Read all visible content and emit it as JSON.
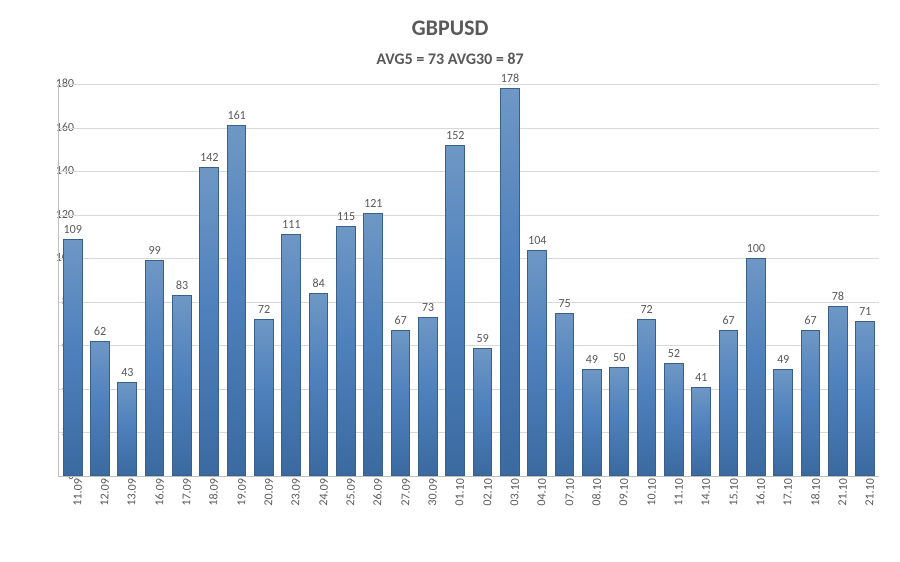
{
  "title": "GBPUSD",
  "subtitle": "AVG5 = 73 AVG30 = 87",
  "title_fontsize": 22,
  "title_color": "#595959",
  "subtitle_fontsize": 16,
  "subtitle_color": "#595959",
  "background_color": "#ffffff",
  "chart": {
    "type": "bar",
    "categories": [
      "11.09",
      "12.09",
      "13.09",
      "16.09",
      "17.09",
      "18.09",
      "19.09",
      "20.09",
      "23.09",
      "24.09",
      "25.09",
      "26.09",
      "27.09",
      "30.09",
      "01.10",
      "02.10",
      "03.10",
      "04.10",
      "07.10",
      "08.10",
      "09.10",
      "10.10",
      "11.10",
      "14.10",
      "15.10",
      "16.10",
      "17.10",
      "18.10",
      "21.10",
      "21.10"
    ],
    "values": [
      109,
      62,
      43,
      99,
      83,
      142,
      161,
      72,
      111,
      84,
      115,
      121,
      67,
      73,
      152,
      59,
      178,
      104,
      75,
      49,
      50,
      72,
      52,
      41,
      67,
      100,
      49,
      67,
      78,
      71
    ],
    "ylim": [
      0,
      180
    ],
    "ytick_step": 20,
    "bar_fill_top": "#6e97c4",
    "bar_fill_mid": "#4f81bd",
    "bar_fill_bottom": "#3b6aa0",
    "bar_border": "#396089",
    "bar_relative_width": 0.72,
    "grid_color": "#d9d9d9",
    "axis_color": "#bfbfbf",
    "value_label_color": "#595959",
    "value_label_fontsize": 12,
    "category_label_fontsize": 12,
    "ytick_label_fontsize": 12,
    "show_value_labels": true,
    "x_label_rotation_deg": -88
  }
}
